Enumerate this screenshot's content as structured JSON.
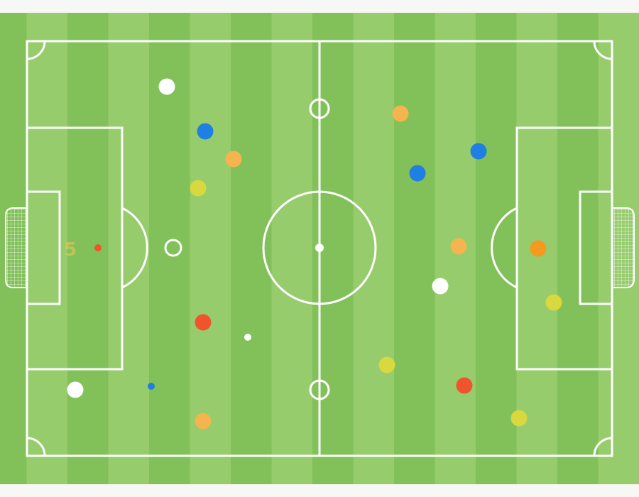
{
  "pitch": {
    "stripe_light": "#96cc6c",
    "stripe_dark": "#82c059",
    "line_color": "#ffffff",
    "faint_label": "5"
  },
  "markers": [
    {
      "team": "white",
      "color": "#ffffff",
      "size": "large"
    },
    {
      "team": "blue",
      "color": "#1f7fe3",
      "size": "large"
    },
    {
      "team": "orange",
      "color": "#f4b44e",
      "size": "large"
    },
    {
      "team": "yellow",
      "color": "#d9d83e",
      "size": "large"
    },
    {
      "team": "red",
      "color": "#f0542f",
      "size": "small"
    },
    {
      "team": "white",
      "color": "#ffffff",
      "size": "ring"
    },
    {
      "team": "red",
      "color": "#f0542f",
      "size": "large"
    },
    {
      "team": "white",
      "color": "#ffffff",
      "size": "small"
    },
    {
      "team": "white",
      "color": "#ffffff",
      "size": "large"
    },
    {
      "team": "blue",
      "color": "#1f7fe3",
      "size": "small"
    },
    {
      "team": "orange",
      "color": "#f4b44e",
      "size": "large"
    },
    {
      "team": "orange",
      "color": "#f4b44e",
      "size": "large"
    },
    {
      "team": "blue",
      "color": "#1f7fe3",
      "size": "large"
    },
    {
      "team": "blue",
      "color": "#1f7fe3",
      "size": "large"
    },
    {
      "team": "orange",
      "color": "#f4b44e",
      "size": "large"
    },
    {
      "team": "orange",
      "color": "#f59a1e",
      "size": "large"
    },
    {
      "team": "white",
      "color": "#ffffff",
      "size": "large"
    },
    {
      "team": "yellow",
      "color": "#d9d83e",
      "size": "large"
    },
    {
      "team": "yellow",
      "color": "#d9d83e",
      "size": "large"
    },
    {
      "team": "red",
      "color": "#f0542f",
      "size": "large"
    },
    {
      "team": "yellow",
      "color": "#d9d83e",
      "size": "large"
    }
  ]
}
